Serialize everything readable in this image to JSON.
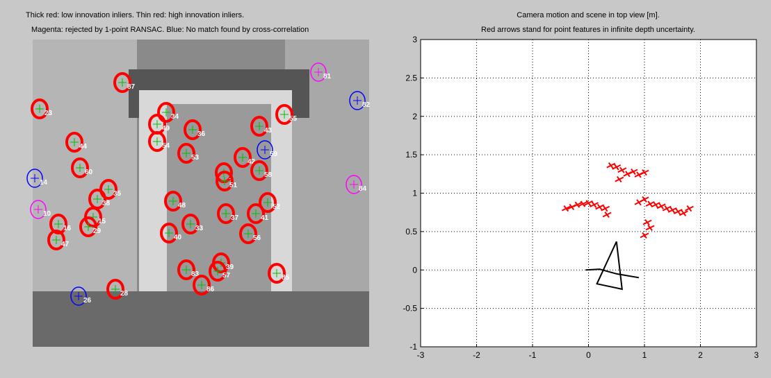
{
  "image_panel": {
    "title": [
      "Thick red: low innovation inliers. Thin red: high innovation inliers.",
      "Magenta: rejected by 1-point RANSAC. Blue: No match found by cross-correlation"
    ],
    "features": [
      {
        "label": "23",
        "color": "#ff0000"
      },
      {
        "label": "87",
        "color": "#ff0000"
      },
      {
        "label": "81",
        "color": "#ff00ff"
      },
      {
        "label": "82",
        "color": "#0000ff"
      },
      {
        "label": "34",
        "color": "#ff0000"
      },
      {
        "label": "55",
        "color": "#ff0000"
      },
      {
        "label": "49",
        "color": "#ff0000"
      },
      {
        "label": "36",
        "color": "#ff0000"
      },
      {
        "label": "43",
        "color": "#ff0000"
      },
      {
        "label": "44",
        "color": "#ff0000"
      },
      {
        "label": "54",
        "color": "#ff0000"
      },
      {
        "label": "53",
        "color": "#ff0000"
      },
      {
        "label": "59",
        "color": "#0000ff"
      },
      {
        "label": "42",
        "color": "#ff0000"
      },
      {
        "label": "60",
        "color": "#ff0000"
      },
      {
        "label": "14",
        "color": "#0000ff"
      },
      {
        "label": "1",
        "color": "#ff0000"
      },
      {
        "label": "51",
        "color": "#ff0000"
      },
      {
        "label": "58",
        "color": "#ff0000"
      },
      {
        "label": "84",
        "color": "#ff00ff"
      },
      {
        "label": "35",
        "color": "#ff0000"
      },
      {
        "label": "38",
        "color": "#ff0000"
      },
      {
        "label": "10",
        "color": "#ff00ff"
      },
      {
        "label": "48",
        "color": "#ff0000"
      },
      {
        "label": "52",
        "color": "#ff0000"
      },
      {
        "label": "37",
        "color": "#ff0000"
      },
      {
        "label": "41",
        "color": "#ff0000"
      },
      {
        "label": "15",
        "color": "#ff0000"
      },
      {
        "label": "16",
        "color": "#ff0000"
      },
      {
        "label": "29",
        "color": "#ff0000"
      },
      {
        "label": "33",
        "color": "#ff0000"
      },
      {
        "label": "40",
        "color": "#ff0000"
      },
      {
        "label": "56",
        "color": "#ff0000"
      },
      {
        "label": "47",
        "color": "#ff0000"
      },
      {
        "label": "39",
        "color": "#ff0000"
      },
      {
        "label": "83",
        "color": "#ff0000"
      },
      {
        "label": "57",
        "color": "#ff0000"
      },
      {
        "label": "85",
        "color": "#ff0000"
      },
      {
        "label": "86",
        "color": "#ff0000"
      },
      {
        "label": "26",
        "color": "#0000ff"
      },
      {
        "label": "28",
        "color": "#ff0000"
      }
    ]
  },
  "chart_data": {
    "type": "scatter",
    "title": [
      "Camera motion and scene in top view [m].",
      "Red arrows stand for point features in infinite depth uncertainty."
    ],
    "xlim": [
      -3,
      3
    ],
    "ylim": [
      -1,
      3
    ],
    "xticks": [
      -3,
      -2,
      -1,
      0,
      1,
      2,
      3
    ],
    "yticks": [
      -1,
      -0.5,
      0,
      0.5,
      1,
      1.5,
      2,
      2.5,
      3
    ],
    "grid": true,
    "series": [
      {
        "color": "#ff0000",
        "mode": "markers",
        "x": [
          0.4,
          0.5,
          0.6,
          0.7,
          0.8,
          0.9,
          1.0,
          0.55,
          -0.4,
          -0.3,
          -0.2,
          -0.1,
          0.0,
          0.1,
          0.2,
          0.3,
          0.33,
          0.9,
          1.0,
          1.1,
          1.2,
          1.3,
          1.4,
          1.5,
          1.6,
          1.7,
          1.8,
          1.0,
          1.1,
          1.05
        ],
        "values": [
          1.36,
          1.34,
          1.3,
          1.25,
          1.28,
          1.24,
          1.27,
          1.18,
          0.8,
          0.82,
          0.85,
          0.86,
          0.87,
          0.85,
          0.82,
          0.8,
          0.72,
          0.88,
          0.92,
          0.86,
          0.85,
          0.83,
          0.8,
          0.78,
          0.76,
          0.74,
          0.8,
          0.45,
          0.55,
          0.62
        ]
      },
      {
        "color": "#000000",
        "mode": "line",
        "x": [
          -0.05,
          0.2,
          0.5,
          0.9
        ],
        "values": [
          0.0,
          0.01,
          -0.05,
          -0.1
        ]
      },
      {
        "color": "#000000",
        "mode": "line",
        "x": [
          0.5,
          0.15,
          0.6,
          0.5
        ],
        "values": [
          0.37,
          -0.18,
          -0.25,
          0.37
        ]
      }
    ]
  }
}
